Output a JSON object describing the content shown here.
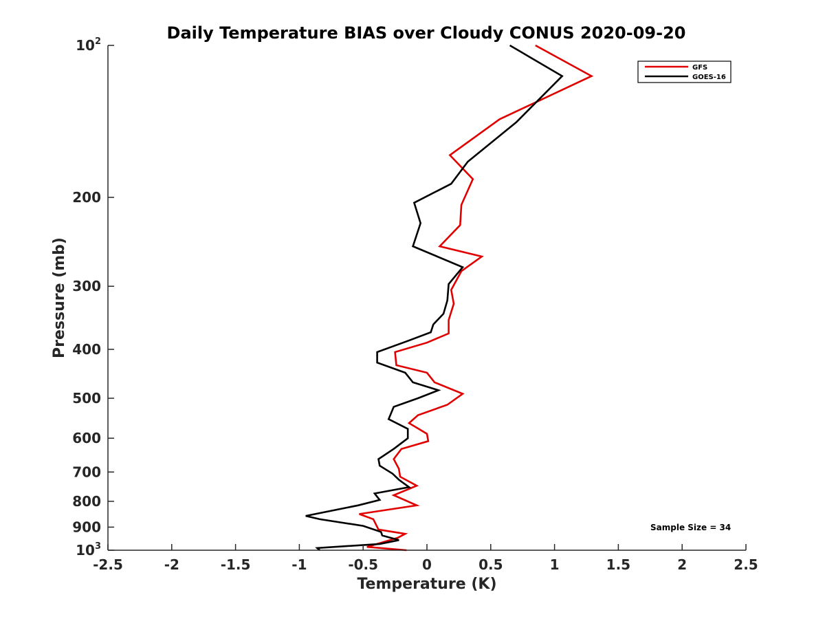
{
  "chart_data": {
    "type": "line",
    "title": "Daily Temperature BIAS over Cloudy CONUS 2020-09-20",
    "xlabel": "Temperature (K)",
    "ylabel": "Pressure (mb)",
    "xlim": [
      -2.5,
      2.5
    ],
    "ylim": [
      100,
      1000
    ],
    "yscale": "log",
    "y_reversed": true,
    "grid": false,
    "legend_position": "top-right",
    "x_ticks": [
      "-2.5",
      "-2",
      "-1.5",
      "-1",
      "-0.5",
      "0",
      "0.5",
      "1",
      "1.5",
      "2",
      "2.5"
    ],
    "x_tick_values": [
      -2.5,
      -2,
      -1.5,
      -1,
      -0.5,
      0,
      0.5,
      1,
      1.5,
      2,
      2.5
    ],
    "y_ticks": [
      {
        "value": 100,
        "base": "10",
        "exp": "2"
      },
      {
        "value": 200,
        "label": "200"
      },
      {
        "value": 300,
        "label": "300"
      },
      {
        "value": 400,
        "label": "400"
      },
      {
        "value": 500,
        "label": "500"
      },
      {
        "value": 600,
        "label": "600"
      },
      {
        "value": 700,
        "label": "700"
      },
      {
        "value": 800,
        "label": "800"
      },
      {
        "value": 900,
        "label": "900"
      },
      {
        "value": 1000,
        "base": "10",
        "exp": "3"
      }
    ],
    "annotation": "Sample Size = 34",
    "series": [
      {
        "name": "GFS",
        "color": "#e00000",
        "x": [
          0.85,
          1.29,
          0.57,
          0.18,
          0.36,
          0.27,
          0.26,
          0.1,
          0.43,
          0.27,
          0.19,
          0.21,
          0.17,
          0.17,
          0.0,
          -0.25,
          -0.24,
          0.0,
          0.06,
          0.28,
          0.16,
          -0.07,
          -0.14,
          0.0,
          0.01,
          -0.2,
          -0.26,
          -0.22,
          -0.21,
          -0.08,
          -0.26,
          -0.08,
          -0.53,
          -0.42,
          -0.38,
          -0.17,
          -0.23,
          -0.47,
          -0.16
        ],
        "y": [
          100,
          115,
          140,
          165,
          184,
          207,
          227,
          250,
          262,
          280,
          305,
          325,
          350,
          372,
          388,
          405,
          430,
          445,
          465,
          490,
          515,
          540,
          560,
          588,
          608,
          630,
          660,
          690,
          715,
          745,
          778,
          815,
          848,
          868,
          910,
          928,
          945,
          985,
          1000
        ]
      },
      {
        "name": "GOES-16",
        "color": "#000000",
        "x": [
          0.65,
          1.06,
          0.7,
          0.32,
          0.19,
          -0.1,
          -0.05,
          -0.11,
          0.28,
          0.17,
          0.16,
          0.13,
          0.05,
          0.03,
          -0.15,
          -0.39,
          -0.39,
          -0.17,
          -0.11,
          0.09,
          -0.07,
          -0.26,
          -0.3,
          -0.15,
          -0.15,
          -0.26,
          -0.38,
          -0.37,
          -0.27,
          -0.22,
          -0.14,
          -0.41,
          -0.37,
          -0.54,
          -0.95,
          -0.84,
          -0.5,
          -0.36,
          -0.35,
          -0.22,
          -0.37,
          -0.86,
          -0.84
        ],
        "y": [
          100,
          115,
          142,
          170,
          188,
          205,
          225,
          250,
          275,
          297,
          320,
          340,
          357,
          370,
          385,
          405,
          425,
          445,
          465,
          482,
          500,
          520,
          550,
          575,
          600,
          630,
          660,
          680,
          705,
          725,
          750,
          772,
          795,
          815,
          855,
          868,
          895,
          920,
          935,
          955,
          972,
          990,
          1000
        ]
      }
    ]
  }
}
